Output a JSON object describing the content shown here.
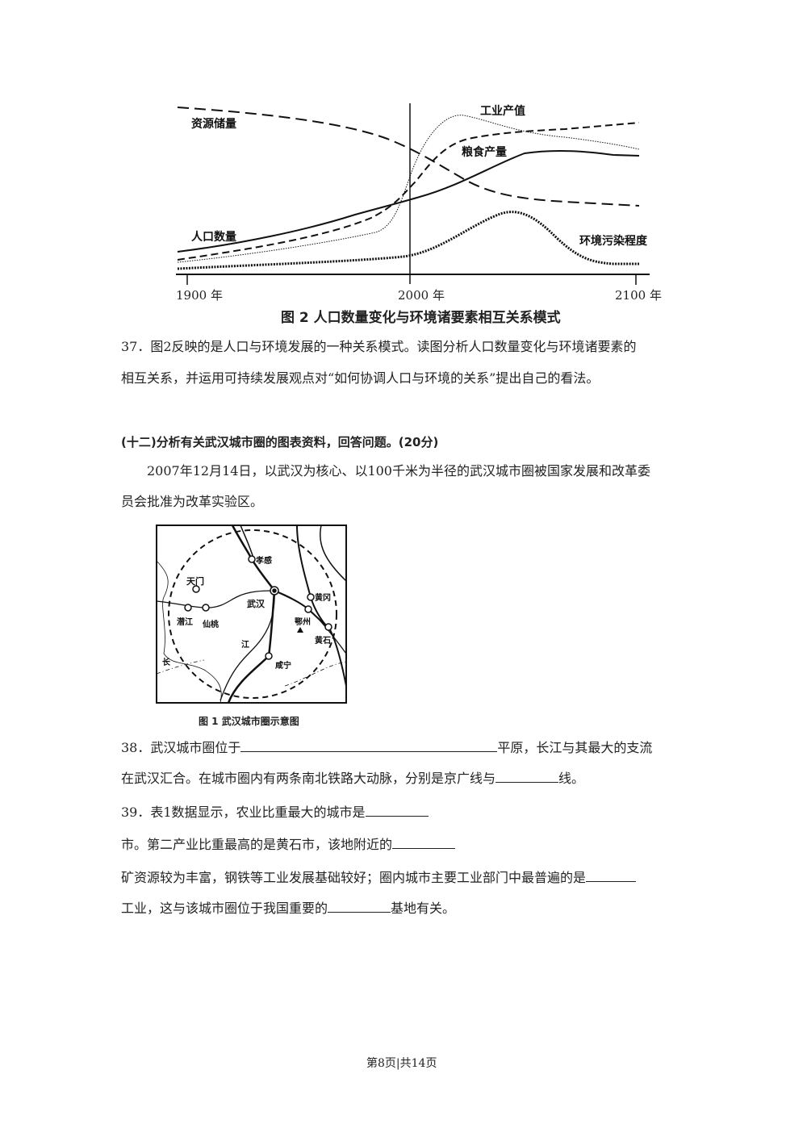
{
  "figure2": {
    "series_labels": {
      "resources": "资源储量",
      "industry": "工业产值",
      "grain": "粮食产量",
      "population": "人口数量",
      "pollution": "环境污染程度"
    },
    "x_ticks": [
      "1900 年",
      "2000 年",
      "2100 年"
    ],
    "caption": "图 2  人口数量变化与环境诸要素相互关系模式"
  },
  "q37": {
    "line1": "37．图2反映的是人口与环境发展的一种关系模式。读图分析人口数量变化与环境诸要素的",
    "line2": "相互关系，并运用可持续发展观点对“如何协调人口与环境的关系”提出自己的看法。"
  },
  "section12": {
    "heading": "(十二)分析有关武汉城市圈的图表资料，回答问题。(20分)",
    "intro1": "2007年12月14日，以武汉为核心、以100千米为半径的武汉城市圈被国家发展和改革委",
    "intro2": "员会批准为改革实验区。"
  },
  "figure1": {
    "cities": {
      "xiaogan": "孝感",
      "tianmen": "天门",
      "wuhan": "武汉",
      "qianjiang": "潜江",
      "xiantao": "仙桃",
      "huanggang": "黄冈",
      "ezhou": "鄂州",
      "huangshi": "黄石",
      "xianning": "咸宁",
      "jiang": "江",
      "chang": "长"
    },
    "caption": "图 1 武汉城市圈示意图"
  },
  "q38": {
    "part1": "38．武汉城市圈位于",
    "part2": "平原，长江与其最大的支流",
    "part3": "在武汉汇合。在城市圈内有两条南北铁路大动脉，分别是京广线与",
    "part4": "线。"
  },
  "q39": {
    "part1": "39．表1数据显示，农业比重最大的城市是",
    "part2": "市。第二产业比重最高的是黄石市，该地附近的",
    "part3": "矿资源较为丰富，钢铁等工业发展基础较好；圈内城市主要工业部门中最普遍的是",
    "part4": "工业，这与该城市圈位于我国重要的",
    "part5": "基地有关。"
  },
  "footer": {
    "page": "第8页|共14页"
  }
}
